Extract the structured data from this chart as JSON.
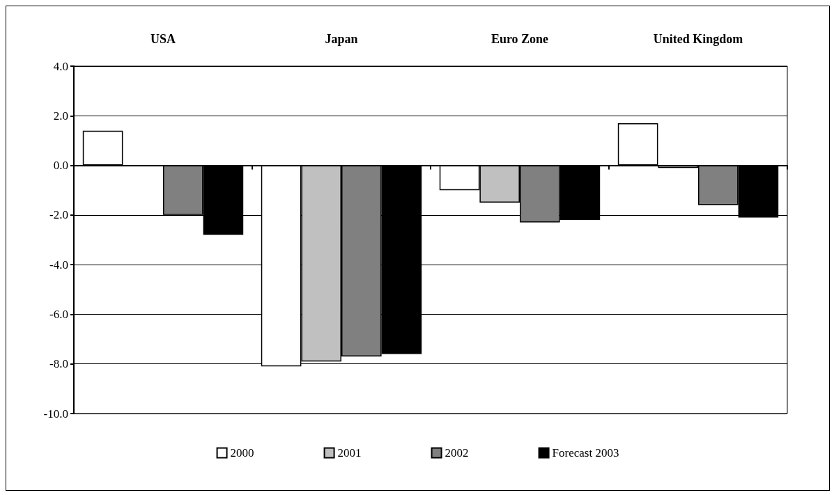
{
  "chart_data": {
    "type": "bar",
    "categories": [
      "USA",
      "Japan",
      "Euro Zone",
      "United Kingdom"
    ],
    "series": [
      {
        "name": "2000",
        "color": "#ffffff",
        "values": [
          1.4,
          -8.1,
          -1.0,
          1.7
        ]
      },
      {
        "name": "2001",
        "color": "#c0c0c0",
        "values": [
          null,
          -7.9,
          -1.5,
          -0.1
        ]
      },
      {
        "name": "2002",
        "color": "#808080",
        "values": [
          -2.0,
          -7.7,
          -2.3,
          -1.6
        ]
      },
      {
        "name": "Forecast 2003",
        "color": "#000000",
        "values": [
          -2.8,
          -7.6,
          -2.2,
          -2.1
        ]
      }
    ],
    "ylim": [
      -10,
      4
    ],
    "yticks": [
      {
        "value": -10,
        "label": "-10.0"
      },
      {
        "value": -8,
        "label": "-8.0"
      },
      {
        "value": -6,
        "label": "-6.0"
      },
      {
        "value": -4,
        "label": "-4.0"
      },
      {
        "value": -2,
        "label": "-2.0"
      },
      {
        "value": 0,
        "label": "0.0"
      },
      {
        "value": 2,
        "label": "2.0"
      },
      {
        "value": 4,
        "label": "4.0"
      }
    ],
    "grid": "y",
    "legend": "bottom"
  }
}
